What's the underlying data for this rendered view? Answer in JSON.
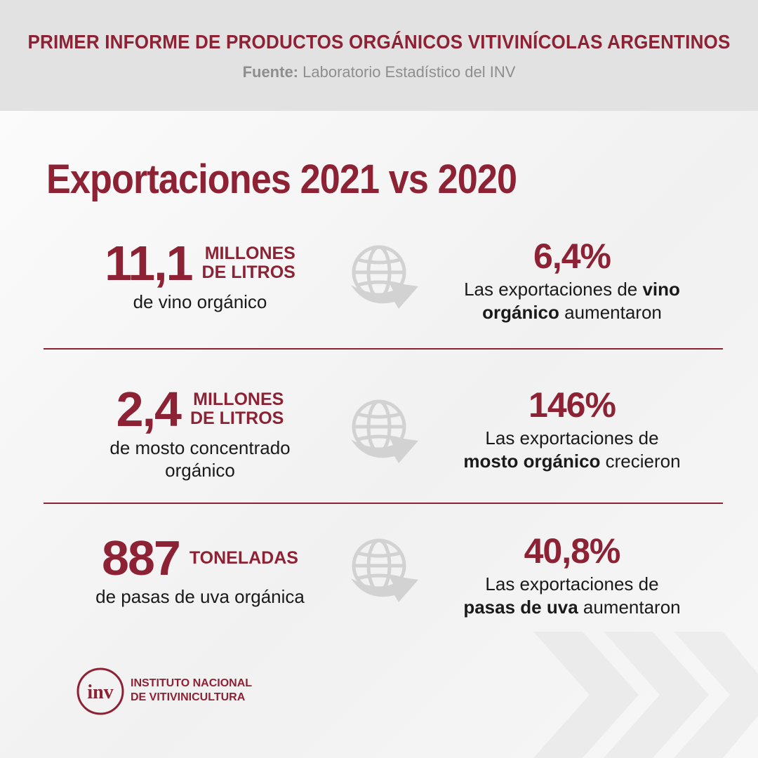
{
  "header": {
    "title": "PRIMER INFORME DE PRODUCTOS ORGÁNICOS VITIVINÍCOLAS ARGENTINOS",
    "source_label": "Fuente:",
    "source_text": "Laboratorio Estadístico del INV"
  },
  "headline": "Exportaciones 2021 vs 2020",
  "rows": [
    {
      "value": "11,1",
      "unit_line1": "MILLONES",
      "unit_line2": "DE LITROS",
      "desc_line1": "de vino orgánico",
      "desc_line2": "",
      "pct": "6,4%",
      "pct_line1_pre": "Las exportaciones de ",
      "pct_line1_bold": "vino",
      "pct_line2_bold": "orgánico",
      "pct_line2_post": " aumentaron"
    },
    {
      "value": "2,4",
      "unit_line1": "MILLONES",
      "unit_line2": "DE LITROS",
      "desc_line1": "de mosto concentrado",
      "desc_line2": "orgánico",
      "pct": "146%",
      "pct_line1_pre": "Las exportaciones de",
      "pct_line1_bold": "",
      "pct_line2_bold": "mosto orgánico",
      "pct_line2_post": " crecieron"
    },
    {
      "value": "887",
      "unit_line1": "TONELADAS",
      "unit_line2": "",
      "desc_line1": "de pasas de uva orgánica",
      "desc_line2": "",
      "pct": "40,8%",
      "pct_line1_pre": "Las exportaciones de",
      "pct_line1_bold": "",
      "pct_line2_bold": "pasas de uva",
      "pct_line2_post": " aumentaron"
    }
  ],
  "icons": {
    "globe": "globe-arrow-icon",
    "logo": "inv-logo-icon",
    "decor": "chevron-decoration-icon"
  },
  "logo": {
    "mark": "inv",
    "line1": "INSTITUTO NACIONAL",
    "line2": "DE VITIVINICULTURA"
  },
  "colors": {
    "brand": "#8c2234",
    "header_bg": "#e2e2e2",
    "source_gray": "#8e8e8e",
    "icon_gray": "#d2d2d2"
  }
}
